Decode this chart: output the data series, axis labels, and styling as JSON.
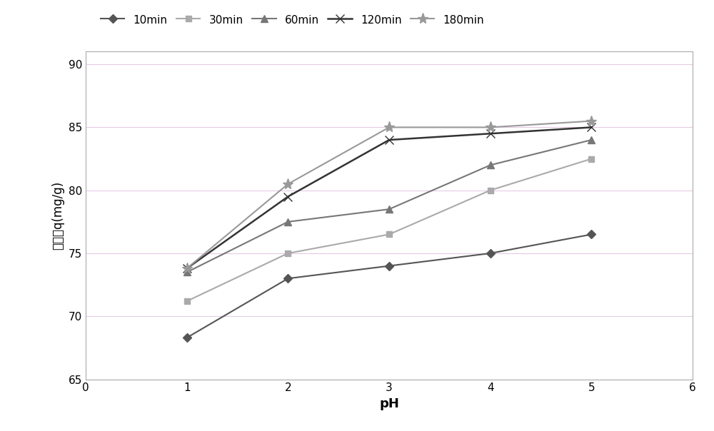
{
  "x": [
    1,
    2,
    3,
    4,
    5
  ],
  "series": [
    {
      "label": "10min",
      "y": [
        68.3,
        73.0,
        74.0,
        75.0,
        76.5
      ],
      "color": "#555555",
      "marker": "D",
      "markersize": 6,
      "linewidth": 1.5
    },
    {
      "label": "30min",
      "y": [
        71.2,
        75.0,
        76.5,
        80.0,
        82.5
      ],
      "color": "#aaaaaa",
      "marker": "s",
      "markersize": 6,
      "linewidth": 1.5
    },
    {
      "label": "60min",
      "y": [
        73.5,
        77.5,
        78.5,
        82.0,
        84.0
      ],
      "color": "#777777",
      "marker": "^",
      "markersize": 7,
      "linewidth": 1.5
    },
    {
      "label": "120min",
      "y": [
        73.8,
        79.5,
        84.0,
        84.5,
        85.0
      ],
      "color": "#333333",
      "marker": "x",
      "markersize": 8,
      "linewidth": 1.8
    },
    {
      "label": "180min",
      "y": [
        73.8,
        80.5,
        85.0,
        85.0,
        85.5
      ],
      "color": "#999999",
      "marker": "*",
      "markersize": 11,
      "linewidth": 1.5
    }
  ],
  "xlim": [
    0,
    6
  ],
  "ylim": [
    65,
    91
  ],
  "yticks": [
    65,
    70,
    75,
    80,
    85,
    90
  ],
  "xticks": [
    0,
    1,
    2,
    3,
    4,
    5,
    6
  ],
  "xlabel": "pH",
  "ylabel": "吸附量q(mg/g)",
  "xlabel_fontsize": 13,
  "ylabel_fontsize": 12,
  "tick_fontsize": 11,
  "legend_fontsize": 11,
  "background_color": "#ffffff",
  "grid_color": "#cc99cc",
  "grid_alpha": 0.5,
  "spine_color": "#aaaaaa"
}
